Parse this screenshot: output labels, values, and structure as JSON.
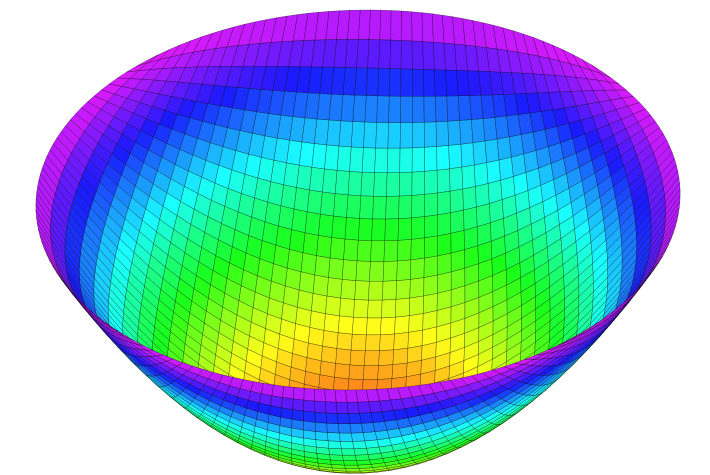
{
  "figure": {
    "surface": "bowl",
    "colormap": [
      "#ff4000",
      "#ffff00",
      "#00ff00",
      "#00ffff",
      "#0000ff",
      "#ff00ff"
    ],
    "mesh_line_color": "#000000",
    "background": "#ffffff",
    "grid_on": true
  }
}
